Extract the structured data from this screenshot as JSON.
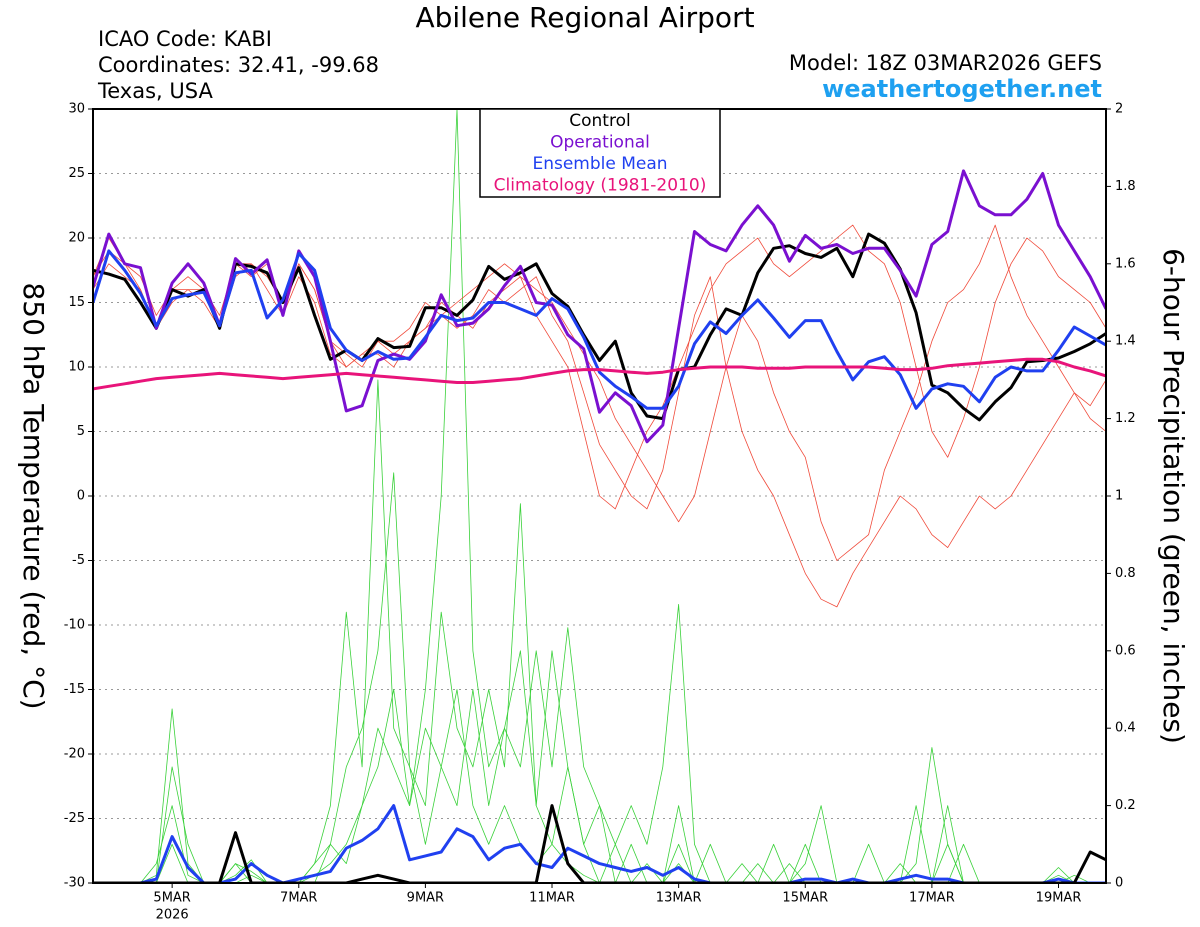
{
  "chart_data": {
    "type": "line",
    "title": "Abilene Regional Airport",
    "info": [
      "ICAO Code: KABI",
      "Coordinates: 32.41, -99.68",
      "Texas, USA"
    ],
    "model": "Model: 18Z 03MAR2026 GEFS",
    "site": "weathertogether.net",
    "ylabel": "850 hPa Temperature (red, °C)",
    "y2label": "6-hour Precipitation (green, inches)",
    "x_sublabel": "2026",
    "categories": [
      null,
      null,
      null,
      null,
      null,
      "5MAR",
      null,
      null,
      null,
      null,
      null,
      null,
      null,
      "7MAR",
      null,
      null,
      null,
      null,
      null,
      null,
      null,
      "9MAR",
      null,
      null,
      null,
      null,
      null,
      null,
      null,
      "11MAR",
      null,
      null,
      null,
      null,
      null,
      null,
      null,
      "13MAR",
      null,
      null,
      null,
      null,
      null,
      null,
      null,
      "15MAR",
      null,
      null,
      null,
      null,
      null,
      null,
      null,
      "17MAR",
      null,
      null,
      null,
      null,
      null,
      null,
      null,
      "19MAR",
      null,
      null,
      null
    ],
    "ylim": [
      -30,
      30
    ],
    "yticks": [
      -30,
      -25,
      -20,
      -15,
      -10,
      -5,
      0,
      5,
      10,
      15,
      20,
      25,
      30
    ],
    "y2lim": [
      0,
      2
    ],
    "y2ticks": [
      0,
      0.2,
      0.4,
      0.6,
      0.8,
      1,
      1.2,
      1.4,
      1.6,
      1.8,
      2
    ],
    "grid": true,
    "series": [
      {
        "color": "#3ad13a",
        "axis": "y2",
        "values": [
          0,
          0,
          0,
          0,
          0.02,
          0.45,
          0.05,
          0,
          0,
          0.05,
          0,
          0,
          0,
          0,
          0.05,
          0.1,
          0.3,
          0.4,
          0.6,
          1.06,
          0.3,
          0.1,
          0.3,
          0.5,
          0.2,
          0.1,
          0.2,
          0.1,
          0.05,
          0.1,
          0.05,
          0.02,
          0,
          0,
          0,
          0.05,
          0,
          0.1,
          0,
          0,
          0,
          0,
          0.05,
          0,
          0,
          0.1,
          0,
          0,
          0,
          0,
          0,
          0,
          0.2,
          0,
          0,
          0.1,
          0,
          0,
          0,
          0,
          0,
          0.02,
          0,
          0,
          0
        ]
      },
      {
        "color": "#3ad13a",
        "axis": "y2",
        "values": [
          0,
          0,
          0,
          0,
          0,
          0.3,
          0.1,
          0,
          0,
          0,
          0.02,
          0,
          0,
          0,
          0,
          0.1,
          0.05,
          0.2,
          0.4,
          0.3,
          0.2,
          0.5,
          1.0,
          2.0,
          0.6,
          0.3,
          0.4,
          0.6,
          0.2,
          0.1,
          0.3,
          0.1,
          0,
          0.1,
          0,
          0,
          0,
          0.2,
          0,
          0,
          0,
          0.05,
          0,
          0,
          0.05,
          0,
          0,
          0,
          0,
          0.1,
          0,
          0,
          0.05,
          0.35,
          0.1,
          0,
          0,
          0,
          0,
          0,
          0,
          0,
          0.02,
          0,
          0
        ]
      },
      {
        "color": "#3ad13a",
        "axis": "y2",
        "values": [
          0,
          0,
          0,
          0,
          0.05,
          0.2,
          0.02,
          0,
          0,
          0.02,
          0.06,
          0,
          0,
          0,
          0.05,
          0.2,
          0.7,
          0.3,
          1.3,
          0.4,
          0.3,
          0.2,
          0.7,
          0.4,
          0.3,
          0.5,
          0.3,
          0.98,
          0.2,
          0.6,
          0.3,
          0.1,
          0.2,
          0,
          0.1,
          0,
          0,
          0.05,
          0,
          0.1,
          0,
          0,
          0,
          0,
          0,
          0.05,
          0.2,
          0,
          0,
          0,
          0,
          0.05,
          0,
          0,
          0.1,
          0,
          0,
          0,
          0,
          0,
          0,
          0.04,
          0,
          0,
          0
        ]
      },
      {
        "color": "#3ad13a",
        "axis": "y2",
        "values": [
          0,
          0,
          0,
          0,
          0,
          0.1,
          0,
          0,
          0,
          0.05,
          0.03,
          0,
          0,
          0,
          0.02,
          0.05,
          0.1,
          0.2,
          0.3,
          0.5,
          0.2,
          0.4,
          0.3,
          0.2,
          0.5,
          0.2,
          0.4,
          0.3,
          0.6,
          0.3,
          0.66,
          0.3,
          0.2,
          0.1,
          0.2,
          0.1,
          0.3,
          0.72,
          0.1,
          0,
          0,
          0,
          0,
          0.1,
          0,
          0,
          0,
          0,
          0,
          0,
          0,
          0,
          0,
          0,
          0.2,
          0,
          0,
          0,
          0,
          0,
          0,
          0,
          0,
          0,
          0
        ]
      },
      {
        "color": "#f04a3a",
        "values": [
          17,
          19,
          18,
          16,
          13,
          16,
          16,
          15,
          13,
          18,
          17,
          18,
          14,
          18,
          16,
          12,
          11,
          10,
          12,
          11,
          12,
          13,
          14,
          13,
          14,
          16,
          15,
          16,
          17,
          14,
          12,
          8,
          4,
          2,
          0,
          -1,
          2,
          8,
          14,
          17,
          10,
          5,
          2,
          0,
          -3,
          -6,
          -8,
          -8.6,
          -6,
          -4,
          -2,
          0,
          -1,
          -3,
          -4,
          -2,
          0,
          -1,
          0,
          2,
          4,
          6,
          8,
          6,
          5
        ]
      },
      {
        "color": "#f04a3a",
        "values": [
          16,
          18,
          17,
          16,
          13,
          15,
          16,
          16,
          13,
          17,
          18,
          17,
          15,
          18,
          16,
          12,
          10,
          11,
          11,
          10,
          12,
          13,
          15,
          14,
          13,
          15,
          16,
          17,
          14,
          12,
          10,
          5,
          0,
          -1,
          2,
          5,
          7,
          10,
          13,
          16,
          18,
          19,
          20,
          18,
          17,
          18,
          19,
          20,
          21,
          19,
          18,
          15,
          10,
          5,
          3,
          6,
          10,
          15,
          18,
          20,
          19,
          17,
          16,
          15,
          13
        ]
      },
      {
        "color": "#f04a3a",
        "values": [
          17,
          20,
          18,
          17,
          14,
          16,
          17,
          16,
          14,
          18,
          18,
          16,
          14,
          17,
          15,
          11,
          10,
          11,
          12,
          12,
          13,
          15,
          14,
          15,
          16,
          17,
          18,
          17,
          16,
          15,
          13,
          11,
          9,
          6,
          4,
          2,
          0,
          -2,
          0,
          5,
          10,
          14,
          12,
          8,
          5,
          3,
          -2,
          -5,
          -4,
          -3,
          2,
          5,
          8,
          12,
          15,
          16,
          18,
          21,
          17,
          14,
          12,
          10,
          8,
          7,
          9
        ]
      },
      {
        "color": "#2040f0",
        "axis": "y2",
        "values": [
          0,
          0,
          0,
          0,
          0.01,
          0.12,
          0.04,
          0,
          0,
          0.01,
          0.05,
          0.02,
          0,
          0.01,
          0.02,
          0.03,
          0.09,
          0.11,
          0.14,
          0.2,
          0.06,
          0.07,
          0.08,
          0.14,
          0.12,
          0.06,
          0.09,
          0.1,
          0.05,
          0.04,
          0.09,
          0.07,
          0.05,
          0.04,
          0.03,
          0.04,
          0.02,
          0.04,
          0.01,
          0,
          0,
          0,
          0,
          0,
          0,
          0.01,
          0.01,
          0,
          0.01,
          0,
          0,
          0.01,
          0.02,
          0.01,
          0.01,
          0,
          0,
          0,
          0,
          0,
          0,
          0.01,
          0,
          0,
          0
        ]
      },
      {
        "color": "#000000",
        "axis": "y2",
        "values": [
          0,
          0,
          0,
          0,
          0,
          0,
          0,
          0,
          0,
          0.13,
          0,
          0,
          0,
          0,
          0,
          0,
          0,
          0.01,
          0.02,
          0.01,
          0,
          0,
          0,
          0,
          0,
          0,
          0,
          0,
          0,
          0.2,
          0.05,
          0,
          0,
          0,
          0,
          0,
          0,
          0,
          0,
          0,
          0,
          0,
          0,
          0,
          0,
          0,
          0,
          0,
          0,
          0,
          0,
          0,
          0,
          0,
          0,
          0,
          0,
          0,
          0,
          0,
          0,
          0,
          0,
          0.08,
          0.06
        ]
      },
      {
        "name": "Control",
        "color": "#000000",
        "values": [
          17.5,
          17.2,
          16.8,
          15,
          13,
          16,
          15.5,
          16,
          13,
          18,
          17.8,
          17.3,
          15,
          17.7,
          14,
          10.6,
          11.3,
          10.5,
          12.2,
          11.5,
          11.6,
          14.6,
          14.6,
          14,
          15.2,
          17.8,
          16.8,
          17.3,
          18,
          15.7,
          14.7,
          12.5,
          10.5,
          12,
          8,
          6.2,
          6,
          9.8,
          10,
          12.5,
          14.5,
          14,
          17.3,
          19.2,
          19.4,
          18.8,
          18.5,
          19.2,
          17,
          20.3,
          19.6,
          17.6,
          14.2,
          8.6,
          8,
          6.8,
          5.9,
          7.3,
          8.4,
          10.4,
          10.5,
          10.7,
          11.2,
          11.8,
          12.6
        ]
      },
      {
        "name": "Operational",
        "color": "#7a10d0",
        "values": [
          16.2,
          20.3,
          18,
          17.7,
          13,
          16.5,
          18,
          16.5,
          13.2,
          18.4,
          17.2,
          18.3,
          14,
          19,
          17,
          12,
          6.6,
          7,
          10.5,
          11,
          10.6,
          12,
          15.6,
          13.2,
          13.4,
          14.5,
          16.3,
          17.8,
          15,
          14.8,
          12.5,
          11.4,
          6.5,
          8,
          7,
          4.2,
          5.5,
          13,
          20.5,
          19.5,
          19,
          21,
          22.5,
          21,
          18.2,
          20.2,
          19.2,
          19.5,
          18.8,
          19.2,
          19.2,
          17.5,
          15.5,
          19.5,
          20.5,
          25.2,
          22.5,
          21.8,
          21.8,
          23,
          25,
          21,
          19,
          17,
          14.5
        ]
      },
      {
        "name": "Ensemble Mean",
        "color": "#2040f0",
        "values": [
          15,
          19,
          17.5,
          15.7,
          13.2,
          15.3,
          15.6,
          15.8,
          13.2,
          17.3,
          17.5,
          13.8,
          15.2,
          18.8,
          17.5,
          13,
          11.3,
          10.5,
          11.2,
          10.6,
          10.7,
          12.3,
          14,
          13.6,
          13.8,
          15,
          15,
          14.5,
          14,
          15.3,
          14.5,
          12.3,
          9.6,
          8.5,
          7.7,
          6.8,
          6.8,
          8.5,
          11.8,
          13.5,
          12.6,
          14,
          15.2,
          13.8,
          12.3,
          13.6,
          13.6,
          11.2,
          9,
          10.4,
          10.8,
          9.4,
          6.8,
          8.3,
          8.7,
          8.5,
          7.3,
          9.2,
          10,
          9.7,
          9.7,
          11.3,
          13.1,
          12.4,
          11.7
        ]
      },
      {
        "name": "Climatology (1981-2010)",
        "color": "#e8147a",
        "values": [
          8.3,
          8.5,
          8.7,
          8.9,
          9.1,
          9.2,
          9.3,
          9.4,
          9.5,
          9.4,
          9.3,
          9.2,
          9.1,
          9.2,
          9.3,
          9.4,
          9.5,
          9.4,
          9.3,
          9.2,
          9.1,
          9,
          8.9,
          8.8,
          8.8,
          8.9,
          9,
          9.1,
          9.3,
          9.5,
          9.7,
          9.8,
          9.8,
          9.7,
          9.6,
          9.5,
          9.6,
          9.8,
          9.9,
          10,
          10,
          10,
          9.9,
          9.9,
          9.9,
          10,
          10,
          10,
          10,
          10,
          9.9,
          9.8,
          9.8,
          9.9,
          10.1,
          10.2,
          10.3,
          10.4,
          10.5,
          10.6,
          10.6,
          10.4,
          10,
          9.7,
          9.3
        ]
      }
    ]
  }
}
